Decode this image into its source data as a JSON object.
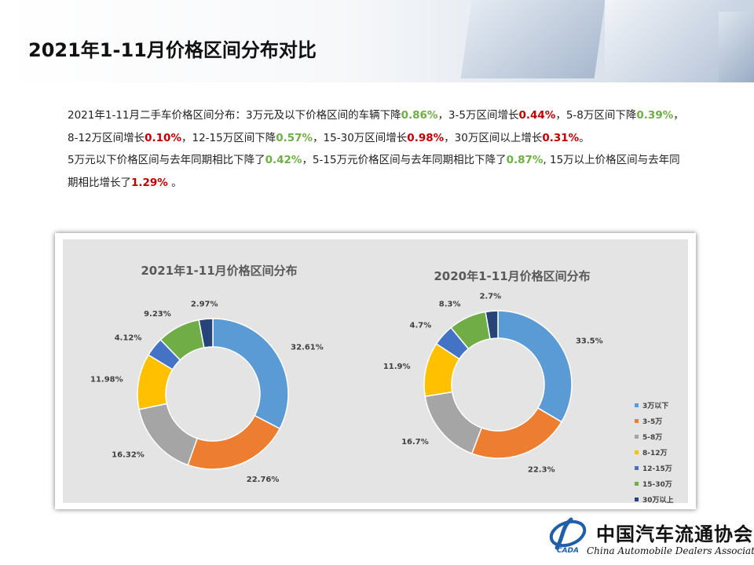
{
  "title": "2021年1-11月价格区间分布对比",
  "summary": {
    "p1_a": "2021年1-11月二手车价格区间分布：3万元及以下价格区间的车辆下降",
    "p1_v1": "0.86%",
    "p1_b": "，3-5万区间增长",
    "p1_v2": "0.44%",
    "p1_c": "，5-8万区间下降",
    "p1_v3": "0.39%",
    "p1_d": "，8-12万区间增长",
    "p1_v4": "0.10%",
    "p1_e": "，12-15万区间下降",
    "p1_v5": "0.57%",
    "p1_f": "，15-30万区间增长",
    "p1_v6": "0.98%",
    "p1_g": "，30万区间以上增长",
    "p1_v7": "0.31%",
    "p1_h": "。",
    "p2_a": "5万元以下价格区间与去年同期相比下降了",
    "p2_v1": "0.42%",
    "p2_b": "，5-15万元价格区间与去年同期相比下降了",
    "p2_v2": "0.87%",
    "p2_c": ", 15万以上价格区间与去年同期相比增长了",
    "p2_v3": "1.29%",
    "p2_d": " 。"
  },
  "chart_data": [
    {
      "type": "pie",
      "donut": true,
      "title": "2021年1-11月价格区间分布",
      "categories": [
        "3万以下",
        "3-5万",
        "5-8万",
        "8-12万",
        "12-15万",
        "15-30万",
        "30万以上"
      ],
      "values": [
        32.61,
        22.76,
        16.32,
        11.98,
        4.12,
        9.23,
        2.97
      ],
      "labels": [
        "32.61%",
        "22.76%",
        "16.32%",
        "11.98%",
        "4.12%",
        "9.23%",
        "2.97%"
      ]
    },
    {
      "type": "pie",
      "donut": true,
      "title": "2020年1-11月价格区间分布",
      "categories": [
        "3万以下",
        "3-5万",
        "5-8万",
        "8-12万",
        "12-15万",
        "15-30万",
        "30万以上"
      ],
      "values": [
        33.5,
        22.3,
        16.7,
        11.9,
        4.7,
        8.3,
        2.7
      ],
      "labels": [
        "33.5%",
        "22.3%",
        "16.7%",
        "11.9%",
        "4.7%",
        "8.3%",
        "2.7%"
      ],
      "legend_position": "right"
    }
  ],
  "colors": [
    "#5b9bd5",
    "#ed7d31",
    "#a5a5a5",
    "#ffc000",
    "#4472c4",
    "#70ad47",
    "#264478"
  ],
  "logo": {
    "cn": "中国汽车流通协会",
    "en": "China Automobile Dealers Association",
    "mark_text": "CADA"
  }
}
